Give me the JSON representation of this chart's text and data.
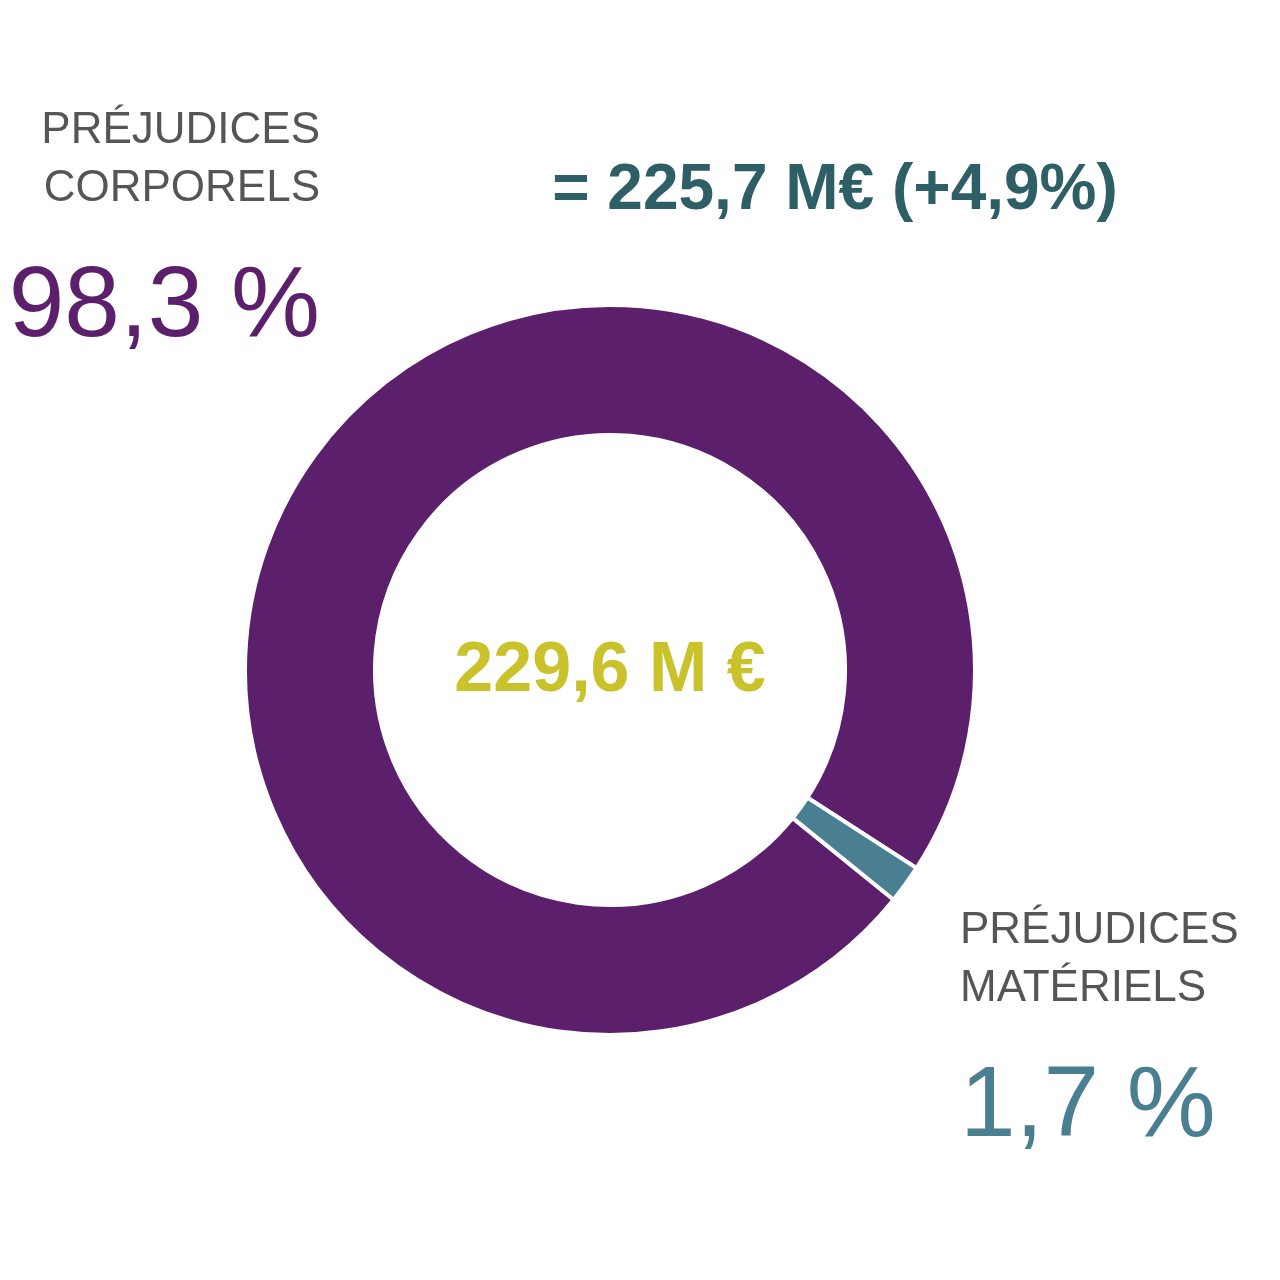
{
  "chart_data": {
    "type": "donut",
    "categories": [
      "PRÉJUDICES CORPORELS",
      "PRÉJUDICES MATÉRIELS"
    ],
    "values": [
      98.3,
      1.7
    ],
    "colors": [
      "#5c1f6b",
      "#4a7f92"
    ],
    "value_labels": [
      "98,3 %",
      "1,7 %"
    ],
    "annotations": [
      "= 225,7 M€ (+4,9%)",
      "229,6 M €"
    ]
  }
}
